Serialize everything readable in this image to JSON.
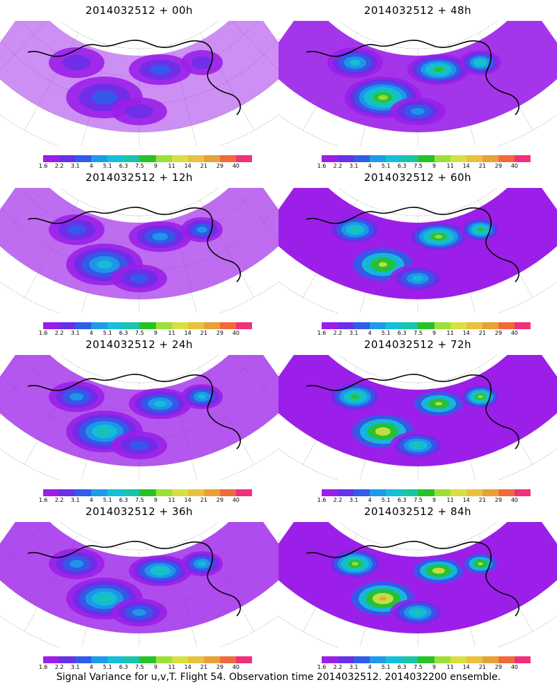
{
  "panels": [
    {
      "title": "2014032512 + 00h",
      "intensity": 0.15
    },
    {
      "title": "2014032512 + 48h",
      "intensity": 0.55
    },
    {
      "title": "2014032512 + 12h",
      "intensity": 0.3
    },
    {
      "title": "2014032512 + 60h",
      "intensity": 0.65
    },
    {
      "title": "2014032512 + 24h",
      "intensity": 0.4
    },
    {
      "title": "2014032512 + 72h",
      "intensity": 0.75
    },
    {
      "title": "2014032512 + 36h",
      "intensity": 0.45
    },
    {
      "title": "2014032512 + 84h",
      "intensity": 0.85
    }
  ],
  "colorbar": {
    "labels": [
      "1.6",
      "2.2",
      "3.1",
      "4",
      "5.1",
      "6.3",
      "7.5",
      "9",
      "11",
      "14",
      "21",
      "29",
      "40"
    ],
    "colors": [
      "#9b1fe8",
      "#6a2fe8",
      "#2f5de8",
      "#1e9be8",
      "#13c0d8",
      "#19c4a8",
      "#27c227",
      "#9be03a",
      "#d7e040",
      "#e8c23f",
      "#e8a038",
      "#f06a3a",
      "#f0307a"
    ]
  },
  "footer": "Signal Variance for u,v,T. Flight 54. Observation time 2014032512. 2014032200 ensemble."
}
